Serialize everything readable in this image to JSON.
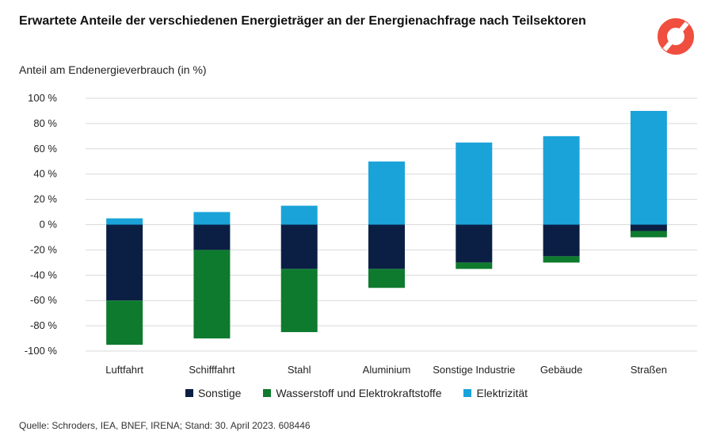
{
  "title": "Erwartete Anteile der verschiedenen Energieträger an der Energienachfrage nach Teilsektoren",
  "source": "Quelle: Schroders, IEA, BNEF, IRENA; Stand: 30. April 2023. 608446",
  "colors": {
    "sonstige": "#0b1f45",
    "wasserstoff": "#0e7a2e",
    "elektrizitaet": "#1aa3d9",
    "grid": "#d9d9d9",
    "logo": "#f04e3e"
  },
  "logo_icon": "ring-logo-icon",
  "chart_data": {
    "type": "bar",
    "stacked": true,
    "ylabel": "Anteil am Endenergieverbrauch (in %)",
    "ylim": [
      -100,
      100
    ],
    "yticks": [
      100,
      80,
      60,
      40,
      20,
      0,
      -20,
      -40,
      -60,
      -80,
      -100
    ],
    "ytick_labels": [
      "100 %",
      "80 %",
      "60 %",
      "40 %",
      "20 %",
      "0 %",
      "-20 %",
      "-40 %",
      "-60 %",
      "-80 %",
      "-100 %"
    ],
    "grid": true,
    "legend_position": "bottom",
    "categories": [
      "Luftfahrt",
      "Schifffahrt",
      "Stahl",
      "Aluminium",
      "Sonstige Industrie",
      "Gebäude",
      "Straßen"
    ],
    "series": [
      {
        "name": "Sonstige",
        "color_key": "sonstige",
        "values": [
          -60,
          -20,
          -35,
          -35,
          -30,
          -25,
          -5
        ]
      },
      {
        "name": "Wasserstoff und Elektrokraftstoffe",
        "color_key": "wasserstoff",
        "values": [
          -35,
          -70,
          -50,
          -15,
          -5,
          -5,
          -5
        ]
      },
      {
        "name": "Elektrizität",
        "color_key": "elektrizitaet",
        "values": [
          5,
          10,
          15,
          50,
          65,
          70,
          90
        ]
      }
    ]
  }
}
